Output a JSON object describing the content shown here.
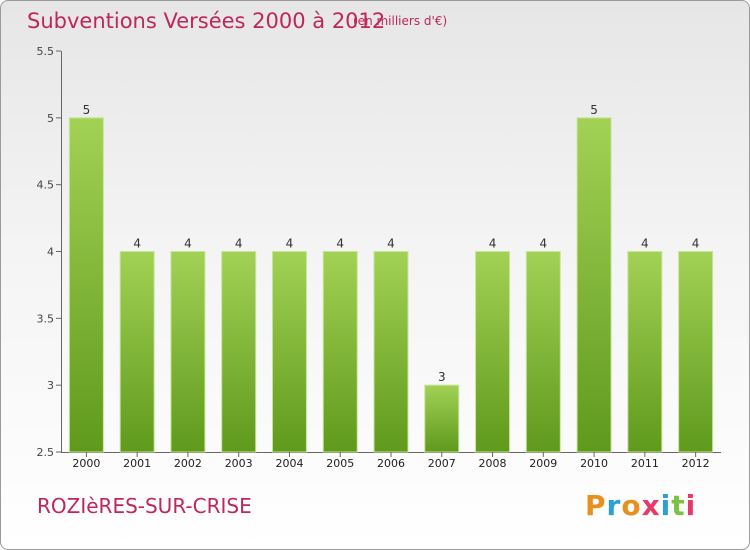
{
  "header": {
    "title": "Subventions Versées 2000 à 2012",
    "unit": "(en milliers d'€)"
  },
  "footer": {
    "commune": "ROZIèRES-SUR-CRISE",
    "logo_text": "Proxiti"
  },
  "colors": {
    "title": "#c0265a",
    "bar_light": "#a2d155",
    "bar_dark": "#5f9a1c",
    "logo_letters": [
      "#e8901e",
      "#2a9fd8",
      "#e8901e",
      "#e83a6a",
      "#2a9fd8",
      "#7cc242",
      "#e83a6a"
    ]
  },
  "chart_data": {
    "type": "bar",
    "title": "Subventions Versées 2000 à 2012",
    "xlabel": "",
    "ylabel": "",
    "categories": [
      "2000",
      "2001",
      "2002",
      "2003",
      "2004",
      "2005",
      "2006",
      "2007",
      "2008",
      "2009",
      "2010",
      "2011",
      "2012"
    ],
    "values": [
      5,
      4,
      4,
      4,
      4,
      4,
      4,
      3,
      4,
      4,
      5,
      4,
      4
    ],
    "data_labels": [
      "5",
      "4",
      "4",
      "4",
      "4",
      "4",
      "4",
      "3",
      "4",
      "4",
      "5",
      "4",
      "4"
    ],
    "ylim": [
      2.5,
      5.5
    ],
    "yticks": [
      2.5,
      3,
      3.5,
      4,
      4.5,
      5,
      5.5
    ],
    "ytick_labels": [
      "2.5",
      "3",
      "3.5",
      "4",
      "4.5",
      "5",
      "5.5"
    ],
    "grid": false,
    "legend": "none"
  }
}
